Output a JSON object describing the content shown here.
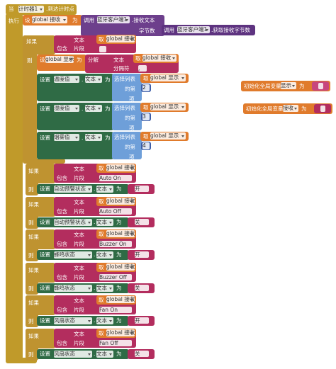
{
  "event": {
    "when": "当",
    "timer": "计时器1",
    "event": ".到达计时点",
    "do": "执行"
  },
  "receive_set": {
    "set": "设",
    "var": "global 接收",
    "to": "为",
    "call1": "调用",
    "bt1": "蓝牙客户端1",
    "method1": ".接收文本",
    "bytes": "字节数",
    "call2": "调用",
    "bt2": "蓝牙客户端1",
    "method2": ".获取接收字节数"
  },
  "split_if": {
    "if": "如果",
    "text": "文本",
    "get": "取",
    "var": "global 接收",
    "contains": "包含",
    "piece": "片段",
    "then": "则",
    "set": "设",
    "target": "global 显示",
    "to": "为",
    "split": "分解",
    "text2": "文本",
    "get2": "取",
    "var2": "global 接收",
    "sep": "分隔符",
    "sep_value": ","
  },
  "list_sets": [
    {
      "set": "设置",
      "component": "温度值",
      "dot": ".",
      "prop": "文本",
      "to": "为",
      "select": "选择列表",
      "get": "取",
      "var": "global 显示",
      "nth": "的第",
      "index": 2,
      "item": "项"
    },
    {
      "set": "设置",
      "component": "湿度值",
      "dot": ".",
      "prop": "文本",
      "to": "为",
      "select": "选择列表",
      "get": "取",
      "var": "global 显示",
      "nth": "的第",
      "index": 3,
      "item": "项"
    },
    {
      "set": "设置",
      "component": "烟雾值",
      "dot": ".",
      "prop": "文本",
      "to": "为",
      "select": "选择列表",
      "get": "取",
      "var": "global 显示",
      "nth": "的第",
      "index": 4,
      "item": "项"
    }
  ],
  "globals": [
    {
      "init": "初始化全局变量",
      "name": "显示",
      "to": "为"
    },
    {
      "init": "初始化全局变量",
      "name": "接收",
      "to": "为"
    }
  ],
  "status_ifs": [
    {
      "if": "如果",
      "text": "文本",
      "get": "取",
      "var": "global 接收",
      "contains": "包含",
      "piece": "片段",
      "match": "Auto On",
      "then": "则",
      "set": "设置",
      "component": "自动预警状态",
      "dot": ".",
      "prop": "文本",
      "to": "为",
      "value": "开"
    },
    {
      "if": "如果",
      "text": "文本",
      "get": "取",
      "var": "global 接收",
      "contains": "包含",
      "piece": "片段",
      "match": "Auto Off",
      "then": "则",
      "set": "设置",
      "component": "自动预警状态",
      "dot": ".",
      "prop": "文本",
      "to": "为",
      "value": "关"
    },
    {
      "if": "如果",
      "text": "文本",
      "get": "取",
      "var": "global 接收",
      "contains": "包含",
      "piece": "片段",
      "match": "Buzzer On",
      "then": "则",
      "set": "设置",
      "component": "蜂鸣状态",
      "dot": ".",
      "prop": "文本",
      "to": "为",
      "value": "开"
    },
    {
      "if": "如果",
      "text": "文本",
      "get": "取",
      "var": "global 接收",
      "contains": "包含",
      "piece": "片段",
      "match": "Buzzer Off",
      "then": "则",
      "set": "设置",
      "component": "蜂鸣状态",
      "dot": ".",
      "prop": "文本",
      "to": "为",
      "value": "关"
    },
    {
      "if": "如果",
      "text": "文本",
      "get": "取",
      "var": "global 接收",
      "contains": "包含",
      "piece": "片段",
      "match": "Fan On",
      "then": "则",
      "set": "设置",
      "component": "风扇状态",
      "dot": ".",
      "prop": "文本",
      "to": "为",
      "value": "开"
    },
    {
      "if": "如果",
      "text": "文本",
      "get": "取",
      "var": "global 接收",
      "contains": "包含",
      "piece": "片段",
      "match": "Fan Off",
      "then": "则",
      "set": "设置",
      "component": "风扇状态",
      "dot": ".",
      "prop": "文本",
      "to": "为",
      "value": "关"
    }
  ]
}
